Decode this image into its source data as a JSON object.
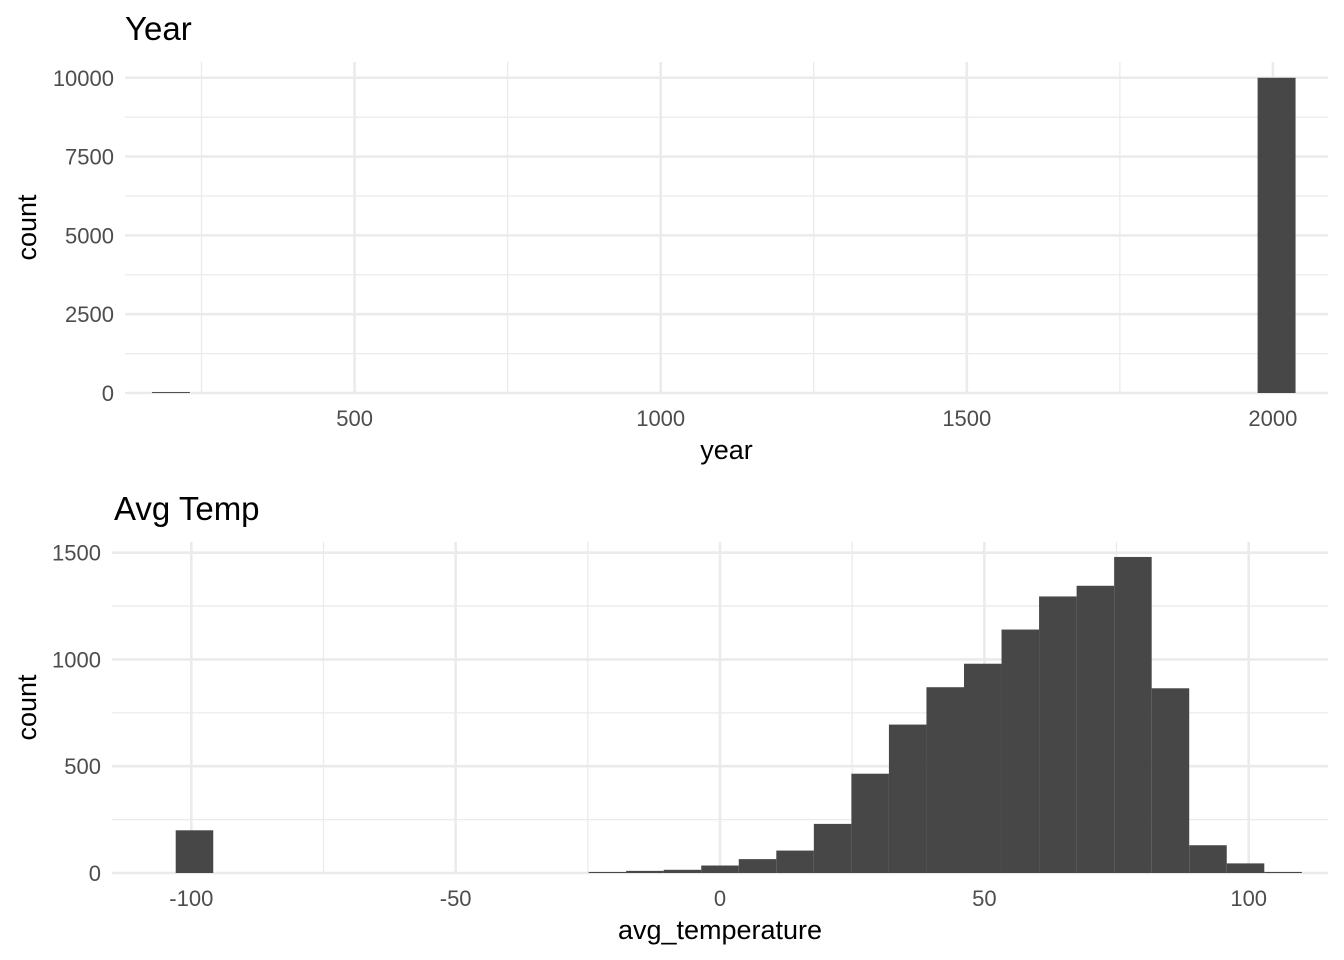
{
  "chart_data": [
    {
      "type": "bar",
      "title": "Year",
      "xlabel": "year",
      "ylabel": "count",
      "xlim": [
        125,
        2090
      ],
      "ylim": [
        0,
        10500
      ],
      "x_ticks": [
        500,
        1000,
        1500,
        2000
      ],
      "y_ticks": [
        0,
        2500,
        5000,
        7500,
        10000
      ],
      "grid": true,
      "bin_width": 62,
      "bins": [
        {
          "x": 200,
          "count": 30
        },
        {
          "x": 2006,
          "count": 10000
        }
      ]
    },
    {
      "type": "bar",
      "title": "Avg Temp",
      "xlabel": "avg_temperature",
      "ylabel": "count",
      "xlim": [
        -115,
        115
      ],
      "ylim": [
        0,
        1550
      ],
      "x_ticks": [
        -100,
        -50,
        0,
        50,
        100
      ],
      "y_ticks": [
        0,
        500,
        1000,
        1500
      ],
      "grid": true,
      "bin_width": 7.1,
      "bins": [
        {
          "x": -99.4,
          "count": 200
        },
        {
          "x": -21.3,
          "count": 5
        },
        {
          "x": -14.2,
          "count": 10
        },
        {
          "x": -7.1,
          "count": 15
        },
        {
          "x": 0.0,
          "count": 35
        },
        {
          "x": 7.1,
          "count": 65
        },
        {
          "x": 14.2,
          "count": 105
        },
        {
          "x": 21.3,
          "count": 230
        },
        {
          "x": 28.4,
          "count": 465
        },
        {
          "x": 35.5,
          "count": 695
        },
        {
          "x": 42.6,
          "count": 870
        },
        {
          "x": 49.7,
          "count": 980
        },
        {
          "x": 56.8,
          "count": 1140
        },
        {
          "x": 63.9,
          "count": 1295
        },
        {
          "x": 71.0,
          "count": 1345
        },
        {
          "x": 78.1,
          "count": 1480
        },
        {
          "x": 85.2,
          "count": 865
        },
        {
          "x": 92.3,
          "count": 130
        },
        {
          "x": 99.4,
          "count": 45
        },
        {
          "x": 106.5,
          "count": 5
        }
      ]
    }
  ]
}
